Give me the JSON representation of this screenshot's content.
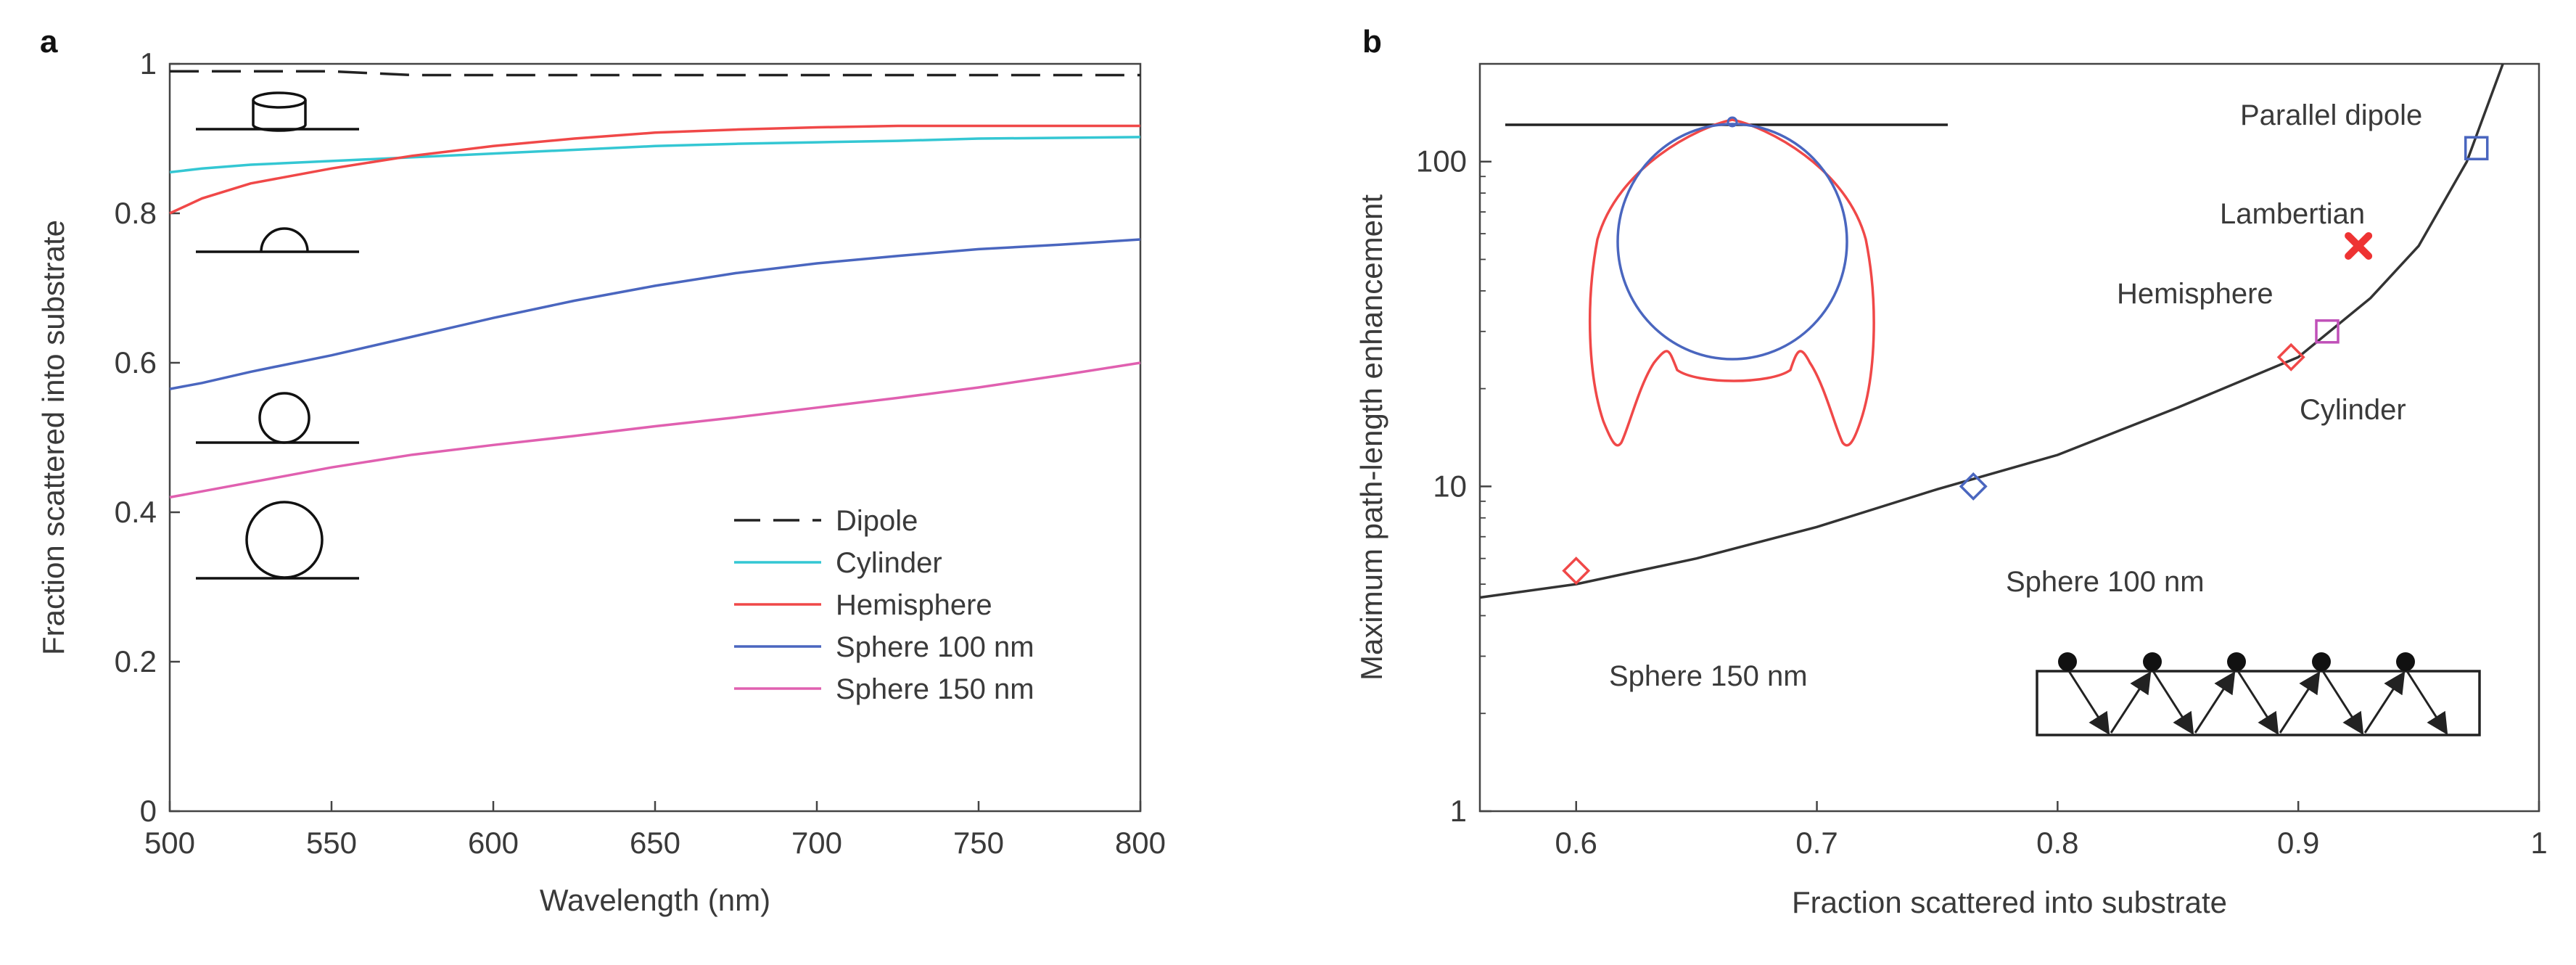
{
  "chart_data": [
    {
      "panel": "a",
      "type": "line",
      "title": "",
      "xlabel": "Wavelength (nm)",
      "ylabel": "Fraction scattered into substrate",
      "xlim": [
        500,
        800
      ],
      "ylim": [
        0,
        1
      ],
      "xticks": [
        "500",
        "550",
        "600",
        "650",
        "700",
        "750",
        "800"
      ],
      "yticks": [
        "0",
        "0.2",
        "0.4",
        "0.6",
        "0.8",
        "1"
      ],
      "legend_position": "bottom-right",
      "x": [
        500,
        510,
        525,
        550,
        575,
        600,
        625,
        650,
        675,
        700,
        725,
        750,
        775,
        800
      ],
      "series": [
        {
          "name": "Dipole",
          "color": "#222222",
          "style": "dashed",
          "values": [
            0.99,
            0.99,
            0.99,
            0.99,
            0.985,
            0.985,
            0.985,
            0.985,
            0.985,
            0.985,
            0.985,
            0.985,
            0.985,
            0.985
          ]
        },
        {
          "name": "Cylinder",
          "color": "#34c7d3",
          "style": "solid",
          "values": [
            0.855,
            0.86,
            0.865,
            0.87,
            0.875,
            0.88,
            0.885,
            0.89,
            0.893,
            0.895,
            0.897,
            0.9,
            0.901,
            0.902
          ]
        },
        {
          "name": "Hemisphere",
          "color": "#f04848",
          "style": "solid",
          "values": [
            0.8,
            0.82,
            0.84,
            0.86,
            0.877,
            0.89,
            0.9,
            0.908,
            0.912,
            0.915,
            0.917,
            0.917,
            0.917,
            0.917
          ]
        },
        {
          "name": "Sphere 100 nm",
          "color": "#4a66bf",
          "style": "solid",
          "values": [
            0.565,
            0.573,
            0.588,
            0.61,
            0.635,
            0.66,
            0.683,
            0.703,
            0.72,
            0.733,
            0.743,
            0.752,
            0.758,
            0.765
          ]
        },
        {
          "name": "Sphere 150 nm",
          "color": "#e060b0",
          "style": "solid",
          "values": [
            0.42,
            0.428,
            0.44,
            0.46,
            0.477,
            0.49,
            0.502,
            0.515,
            0.527,
            0.54,
            0.553,
            0.567,
            0.583,
            0.6
          ]
        }
      ]
    },
    {
      "panel": "b",
      "type": "scatter",
      "title": "",
      "xlabel": "Fraction scattered into substrate",
      "ylabel": "Maximum path-length enhancement",
      "xlim": [
        0.56,
        1.0
      ],
      "ylim": [
        1,
        200
      ],
      "yscale": "log",
      "xticks": [
        "0.6",
        "0.7",
        "0.8",
        "0.9",
        "1"
      ],
      "yticks": [
        "1",
        "10",
        "100"
      ],
      "curve": {
        "x": [
          0.56,
          0.6,
          0.65,
          0.7,
          0.75,
          0.8,
          0.85,
          0.9,
          0.93,
          0.95,
          0.97,
          0.985
        ],
        "y": [
          4.55,
          5.0,
          6.0,
          7.5,
          9.8,
          12.5,
          17.5,
          25,
          38,
          55,
          100,
          200
        ]
      },
      "points": [
        {
          "label": "Sphere 150 nm",
          "x": 0.6,
          "y": 5.5,
          "marker": "diamond",
          "color": "#f04848"
        },
        {
          "label": "Sphere 100 nm",
          "x": 0.765,
          "y": 10,
          "marker": "diamond",
          "color": "#4a66bf"
        },
        {
          "label": "Cylinder",
          "x": 0.897,
          "y": 25,
          "marker": "diamond",
          "color": "#f04848"
        },
        {
          "label": "Hemisphere",
          "x": 0.912,
          "y": 30,
          "marker": "square",
          "color": "#c050b8"
        },
        {
          "label": "Lambertian",
          "x": 0.925,
          "y": 55,
          "marker": "x",
          "color": "#ee3333"
        },
        {
          "label": "Parallel dipole",
          "x": 0.974,
          "y": 110,
          "marker": "square",
          "color": "#4a66bf"
        }
      ],
      "inset_radiation_pattern": {
        "blue": "Sphere",
        "red": "Dipole"
      }
    }
  ],
  "labels": {
    "panel_a": "a",
    "panel_b": "b",
    "ann_parallel_dipole": "Parallel dipole",
    "ann_lambertian": "Lambertian",
    "ann_hemisphere": "Hemisphere",
    "ann_cylinder": "Cylinder",
    "ann_sphere100": "Sphere 100 nm",
    "ann_sphere150": "Sphere 150 nm"
  }
}
